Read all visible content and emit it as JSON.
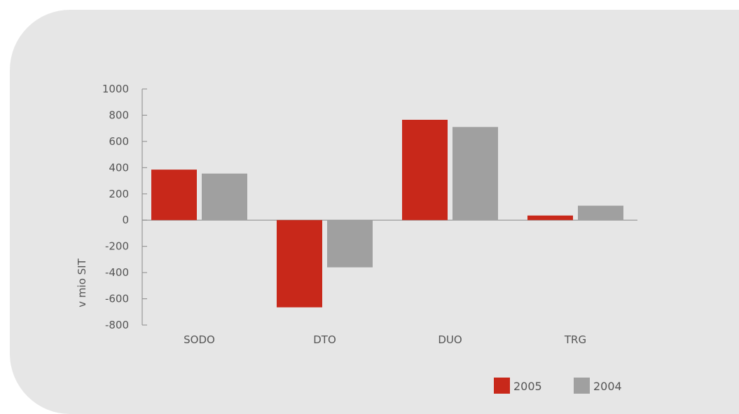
{
  "chart_data": {
    "type": "bar",
    "title": "",
    "xlabel": "",
    "ylabel": "v mio SIT",
    "categories": [
      "SODO",
      "DTO",
      "DUO",
      "TRG"
    ],
    "series": [
      {
        "name": "2005",
        "color": "#c8281a",
        "values": [
          385,
          -665,
          765,
          35
        ]
      },
      {
        "name": "2004",
        "color": "#a0a0a0",
        "values": [
          355,
          -360,
          710,
          110
        ]
      }
    ],
    "ylim": [
      -800,
      1000
    ],
    "yticks": [
      1000,
      800,
      600,
      400,
      200,
      0,
      -200,
      -400,
      -600,
      -800
    ],
    "grid": false,
    "legend_position": "bottom-right"
  }
}
